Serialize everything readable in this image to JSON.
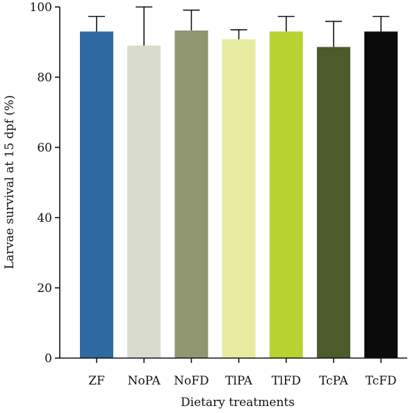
{
  "chart_data": {
    "type": "bar",
    "title": "",
    "xlabel": "Dietary treatments",
    "ylabel": "Larvae survival at 15 dpf (%)",
    "ylim": [
      0,
      100
    ],
    "yticks": [
      "0",
      "20",
      "40",
      "60",
      "80",
      "100"
    ],
    "grid": false,
    "categories": [
      "ZF",
      "NoPA",
      "NoFD",
      "TlPA",
      "TlFD",
      "TcPA",
      "TcFD"
    ],
    "values": [
      93,
      89,
      93.3,
      90.8,
      93,
      88.6,
      93
    ],
    "error_upper": [
      4.3,
      11,
      5.8,
      2.7,
      4.3,
      7.3,
      4.3
    ],
    "colors": [
      "#2e6aa0",
      "#d9dbcf",
      "#909670",
      "#e7eba0",
      "#b8d232",
      "#4d5a2b",
      "#0b0b0b"
    ]
  }
}
